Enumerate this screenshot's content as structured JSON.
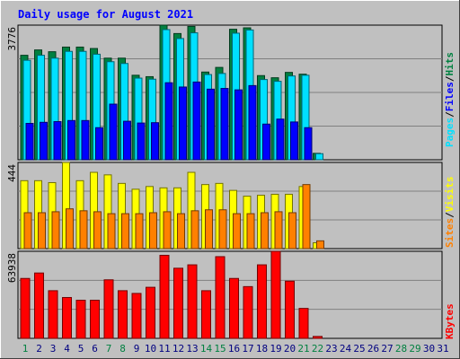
{
  "chart_data": {
    "type": "bar",
    "title": "Daily usage for August 2021",
    "categories": [
      "1",
      "2",
      "3",
      "4",
      "5",
      "6",
      "7",
      "8",
      "9",
      "10",
      "11",
      "12",
      "13",
      "14",
      "15",
      "16",
      "17",
      "18",
      "19",
      "20",
      "21",
      "22",
      "23",
      "24",
      "25",
      "26",
      "27",
      "28",
      "29",
      "30",
      "31"
    ],
    "weekend_days": [
      1,
      7,
      8,
      14,
      15,
      21,
      22,
      28,
      29
    ],
    "panels": [
      {
        "name": "hits-files-pages",
        "max_label": "3776",
        "max": 3776,
        "legend": [
          "Pages",
          "/",
          "Files",
          "/",
          "Hits"
        ],
        "series": [
          {
            "name": "Hits",
            "color": "#008040",
            "values": [
              2930,
              3080,
              3030,
              3160,
              3160,
              3120,
              2850,
              2850,
              2370,
              2330,
              3776,
              3540,
              3740,
              2460,
              2590,
              3660,
              3700,
              2360,
              2300,
              2450,
              2400,
              180,
              0,
              0,
              0,
              0,
              0,
              0,
              0,
              0,
              0
            ]
          },
          {
            "name": "Files",
            "color": "#00e0ff",
            "values": [
              2790,
              2930,
              2850,
              3040,
              3040,
              2960,
              2750,
              2700,
              2290,
              2260,
              3650,
              3400,
              3560,
              2390,
              2420,
              3550,
              3640,
              2250,
              2200,
              2350,
              2370,
              170,
              0,
              0,
              0,
              0,
              0,
              0,
              0,
              0,
              0
            ]
          },
          {
            "name": "Pages",
            "color": "#0000ff",
            "values": [
              1020,
              1050,
              1070,
              1100,
              1100,
              900,
              1560,
              1080,
              1030,
              1040,
              2160,
              2040,
              2180,
              1980,
              2000,
              1960,
              2080,
              1000,
              1140,
              1060,
              900,
              0,
              0,
              0,
              0,
              0,
              0,
              0,
              0,
              0,
              0
            ]
          }
        ]
      },
      {
        "name": "visits-sites",
        "max_label": "444",
        "max": 444,
        "legend": [
          "Sites",
          "/",
          "Visits"
        ],
        "series": [
          {
            "name": "Visits",
            "color": "#ffff00",
            "values": [
              350,
              350,
              340,
              444,
              350,
              393,
              380,
              336,
              306,
              320,
              313,
              313,
              393,
              330,
              336,
              300,
              270,
              275,
              280,
              280,
              320,
              30,
              0,
              0,
              0,
              0,
              0,
              0,
              0,
              0,
              0
            ]
          },
          {
            "name": "Sites",
            "color": "#ff8000",
            "values": [
              185,
              185,
              190,
              205,
              195,
              190,
              180,
              180,
              180,
              185,
              190,
              180,
              195,
              200,
              200,
              180,
              180,
              185,
              190,
              185,
              330,
              40,
              0,
              0,
              0,
              0,
              0,
              0,
              0,
              0,
              0
            ]
          }
        ]
      },
      {
        "name": "kbytes",
        "max_label": "63938",
        "max": 63938,
        "legend": [
          "KBytes"
        ],
        "series": [
          {
            "name": "KBytes",
            "color": "#ff0000",
            "values": [
              44000,
              48000,
              35000,
              30000,
              28000,
              28000,
              43000,
              35000,
              33000,
              37500,
              61000,
              51500,
              54000,
              35000,
              60000,
              44000,
              38000,
              54000,
              63938,
              42000,
              22000,
              1400,
              0,
              0,
              0,
              0,
              0,
              0,
              0,
              0,
              0
            ]
          }
        ]
      }
    ],
    "colors": {
      "weekday_label": "#000080",
      "weekend_label": "#008040",
      "title": "#0000ff",
      "pages_legend": "#00e0ff",
      "files_legend": "#0000ff",
      "hits_legend": "#008040",
      "sites_legend": "#ff8000",
      "visits_legend": "#ffff00",
      "kbytes_legend": "#ff0000"
    }
  }
}
